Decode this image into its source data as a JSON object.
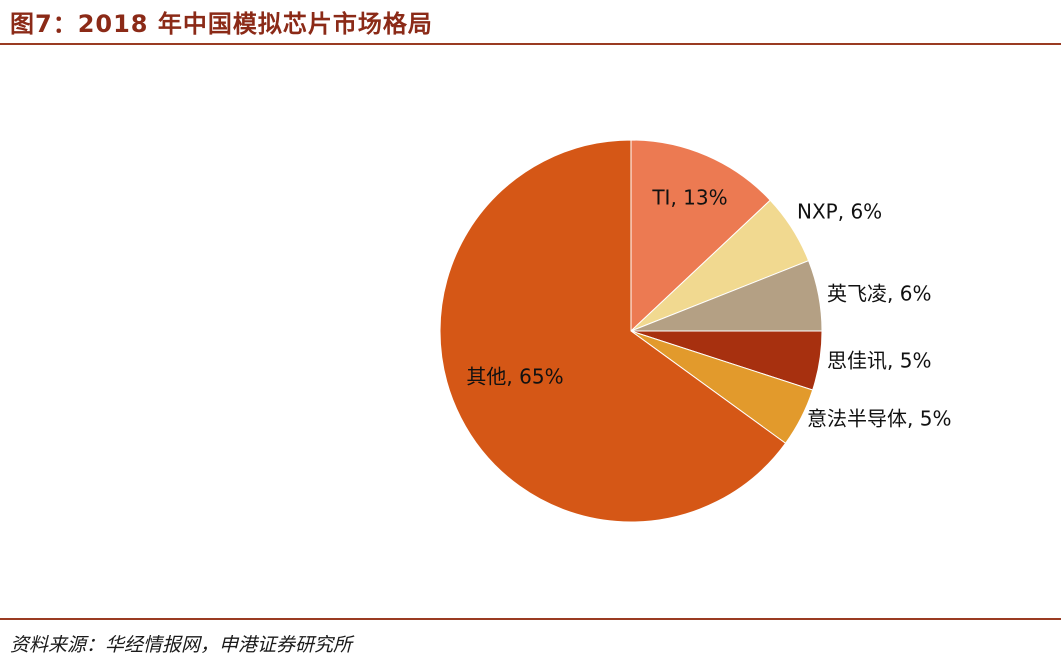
{
  "header": {
    "title": "图7：2018 年中国模拟芯片市场格局"
  },
  "footer": {
    "source": "资料来源：华经情报网，申港证券研究所"
  },
  "chart_data": {
    "type": "pie",
    "title": "",
    "unit": "%",
    "slices": [
      {
        "name": "TI",
        "value": 13,
        "label": "TI, 13%",
        "color": "#ec7a52"
      },
      {
        "name": "NXP",
        "value": 6,
        "label": "NXP, 6%",
        "color": "#f1d990"
      },
      {
        "name": "英飞凌",
        "value": 6,
        "label": "英飞凌, 6%",
        "color": "#b4a084"
      },
      {
        "name": "思佳讯",
        "value": 5,
        "label": "思佳讯, 5%",
        "color": "#a7300f"
      },
      {
        "name": "意法半导体",
        "value": 5,
        "label": "意法半导体, 5%",
        "color": "#e29a2c"
      },
      {
        "name": "其他",
        "value": 65,
        "label": "其他, 65%",
        "color": "#d55716"
      }
    ],
    "start_angle_deg": 90,
    "direction": "clockwise",
    "legend": "none"
  }
}
